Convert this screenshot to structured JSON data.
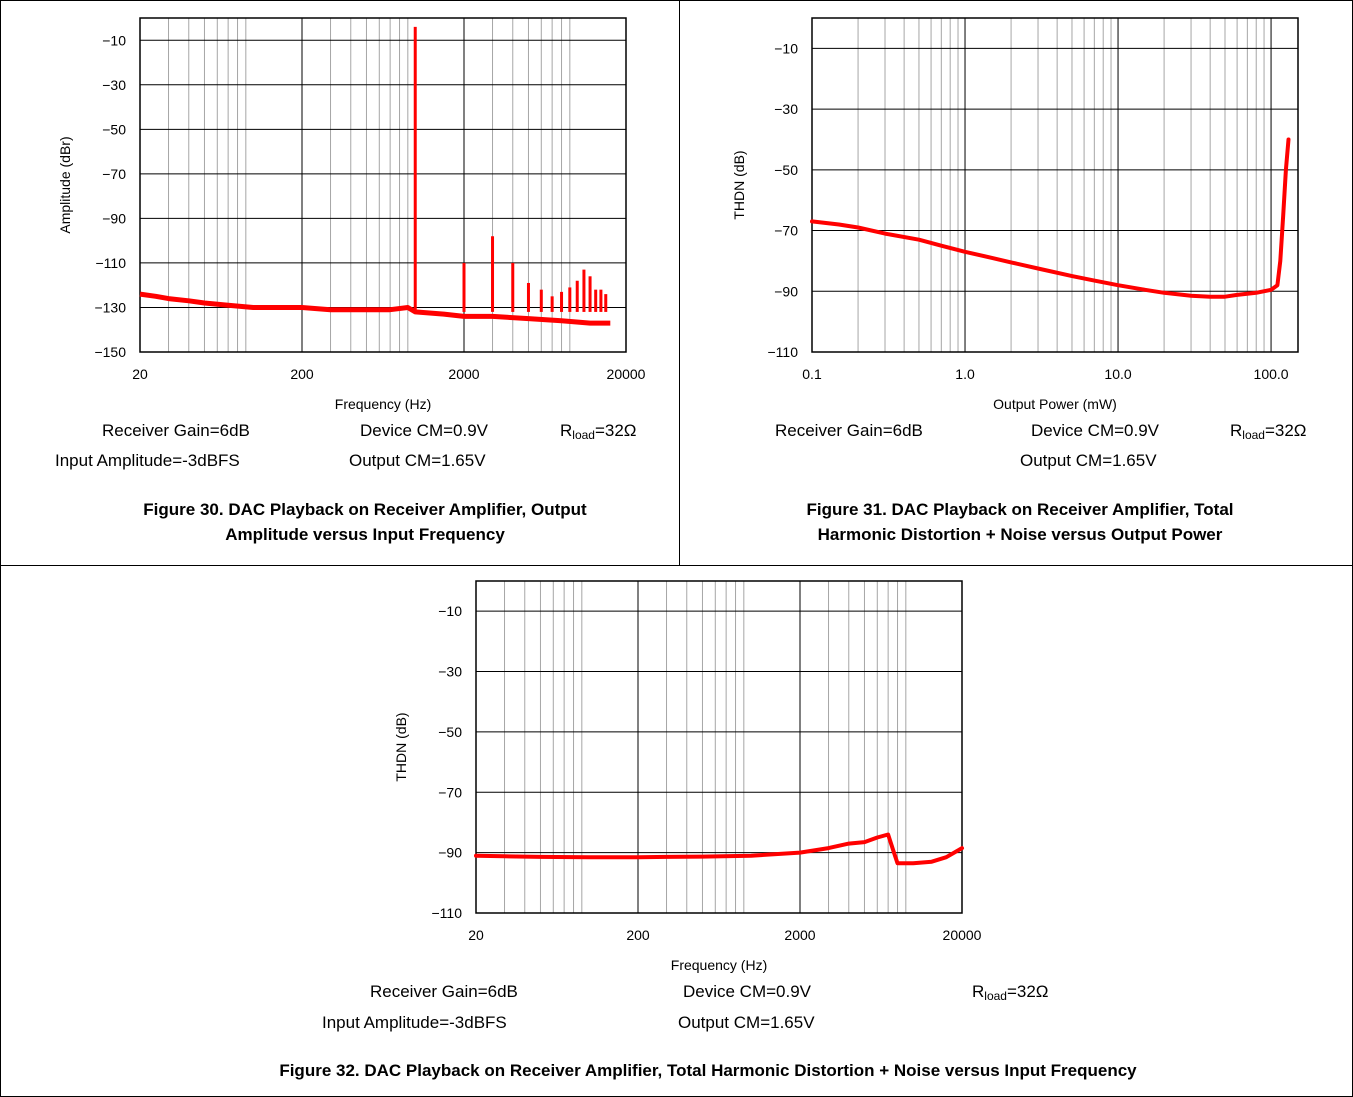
{
  "figures": [
    {
      "caption_line1": "Figure 30. DAC Playback on Receiver Amplifier, Output",
      "caption_line2": "Amplitude versus Input Frequency",
      "notes": {
        "receiver_gain": "Receiver Gain=6dB",
        "device_cm": "Device CM=0.9V",
        "rload_prefix": "R",
        "rload_sub": "load",
        "rload_suffix": "=32Ω",
        "input_amplitude": "Input Amplitude=-3dBFS",
        "output_cm": "Output CM=1.65V"
      }
    },
    {
      "caption_line1": "Figure 31. DAC Playback on Receiver Amplifier, Total",
      "caption_line2": "Harmonic Distortion + Noise versus Output Power",
      "notes": {
        "receiver_gain": "Receiver Gain=6dB",
        "device_cm": "Device CM=0.9V",
        "rload_prefix": "R",
        "rload_sub": "load",
        "rload_suffix": "=32Ω",
        "output_cm": "Output CM=1.65V"
      }
    },
    {
      "caption_line1": "Figure 32. DAC Playback on Receiver Amplifier, Total Harmonic Distortion + Noise versus Input Frequency",
      "notes": {
        "receiver_gain": "Receiver Gain=6dB",
        "device_cm": "Device CM=0.9V",
        "rload_prefix": "R",
        "rload_sub": "load",
        "rload_suffix": "=32Ω",
        "input_amplitude": "Input Amplitude=-3dBFS",
        "output_cm": "Output CM=1.65V"
      }
    }
  ],
  "chart_data": [
    {
      "type": "line",
      "xlabel": "Frequency (Hz)",
      "ylabel": "Amplitude (dBr)",
      "x_scale": "log",
      "xlim": [
        20,
        20000
      ],
      "ylim": [
        -150,
        0
      ],
      "xticks": [
        20,
        200,
        2000,
        20000
      ],
      "xtick_labels": [
        "20",
        "200",
        "2000",
        "20000"
      ],
      "yticks": [
        -10,
        -30,
        -50,
        -70,
        -90,
        -110,
        -130,
        -150
      ],
      "ytick_labels": [
        "−10",
        "−30",
        "−50",
        "−70",
        "−90",
        "−110",
        "−130",
        "−150"
      ],
      "grid": true,
      "line_color": "#ff0000",
      "noise_floor": {
        "x": [
          20,
          25,
          30,
          40,
          50,
          70,
          100,
          150,
          200,
          300,
          500,
          700,
          900,
          1000,
          1500,
          2000,
          3000,
          5000,
          8000,
          12000,
          16000
        ],
        "y": [
          -124,
          -125,
          -126,
          -127,
          -128,
          -129,
          -130,
          -130,
          -130,
          -131,
          -131,
          -131,
          -130,
          -132,
          -133,
          -134,
          -134,
          -135,
          -136,
          -137,
          -137
        ]
      },
      "spikes": {
        "x": [
          1000,
          2000,
          3000,
          4000,
          5000,
          6000,
          7000,
          8000,
          9000,
          10000,
          11000,
          12000,
          13000,
          14000,
          15000
        ],
        "y": [
          -4,
          -110,
          -98,
          -110,
          -119,
          -122,
          -125,
          -123,
          -121,
          -118,
          -113,
          -116,
          -122,
          -122,
          -124
        ]
      }
    },
    {
      "type": "line",
      "xlabel": "Output Power (mW)",
      "ylabel": "THDN (dB)",
      "x_scale": "log",
      "xlim": [
        0.1,
        150
      ],
      "ylim": [
        -110,
        0
      ],
      "xticks": [
        0.1,
        1,
        10,
        100
      ],
      "xtick_labels": [
        "0.1",
        "1.0",
        "10.0",
        "100.0"
      ],
      "yticks": [
        -10,
        -30,
        -50,
        -70,
        -90,
        -110
      ],
      "ytick_labels": [
        "−10",
        "−30",
        "−50",
        "−70",
        "−90",
        "−110"
      ],
      "grid": true,
      "line_color": "#ff0000",
      "x": [
        0.1,
        0.15,
        0.2,
        0.3,
        0.5,
        0.7,
        1.0,
        1.5,
        2,
        3,
        5,
        7,
        10,
        15,
        20,
        30,
        40,
        50,
        60,
        80,
        100,
        110,
        115,
        120,
        125,
        130
      ],
      "y": [
        -67,
        -68,
        -69,
        -71,
        -73,
        -75,
        -77,
        -79,
        -80.5,
        -82.5,
        -85,
        -86.5,
        -88,
        -89.5,
        -90.5,
        -91.5,
        -91.8,
        -91.8,
        -91.2,
        -90.5,
        -89.5,
        -88,
        -80,
        -65,
        -50,
        -40
      ]
    },
    {
      "type": "line",
      "xlabel": "Frequency (Hz)",
      "ylabel": "THDN (dB)",
      "x_scale": "log",
      "xlim": [
        20,
        20000
      ],
      "ylim": [
        -110,
        0
      ],
      "xticks": [
        20,
        200,
        2000,
        20000
      ],
      "xtick_labels": [
        "20",
        "200",
        "2000",
        "20000"
      ],
      "yticks": [
        -10,
        -30,
        -50,
        -70,
        -90,
        -110
      ],
      "ytick_labels": [
        "−10",
        "−30",
        "−50",
        "−70",
        "−90",
        "−110"
      ],
      "grid": true,
      "line_color": "#ff0000",
      "x": [
        20,
        30,
        50,
        100,
        200,
        300,
        500,
        1000,
        2000,
        3000,
        4000,
        5000,
        6000,
        7000,
        7500,
        8000,
        10000,
        13000,
        16000,
        20000
      ],
      "y": [
        -91,
        -91.2,
        -91.4,
        -91.5,
        -91.5,
        -91.4,
        -91.3,
        -91,
        -90,
        -88.5,
        -87,
        -86.5,
        -85,
        -84,
        -89,
        -93.5,
        -93.5,
        -93,
        -91.5,
        -88.5
      ]
    }
  ]
}
